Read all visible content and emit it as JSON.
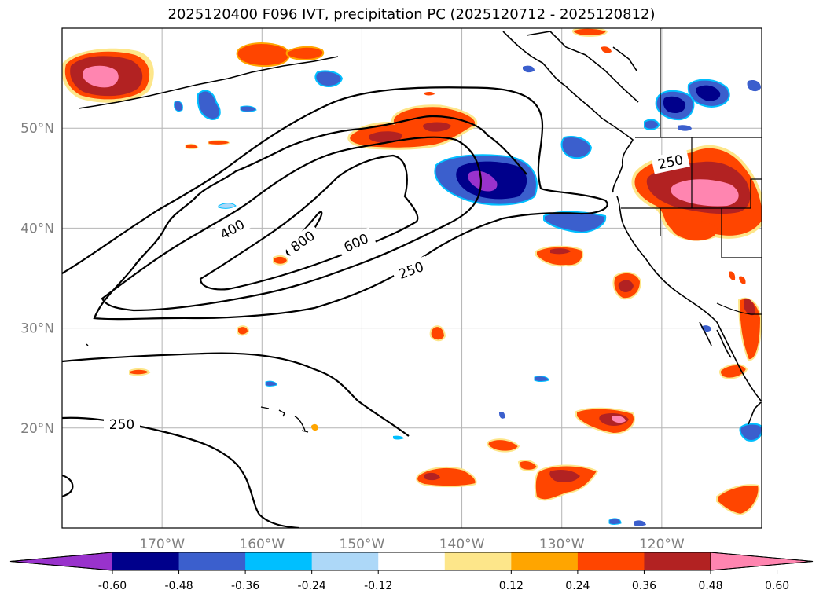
{
  "title": "2025120400 F096 IVT, precipitation PC (2025120712 - 2025120812)",
  "axes": {
    "lon_labels": [
      "170°W",
      "160°W",
      "150°W",
      "140°W",
      "130°W",
      "120°W"
    ],
    "lat_labels": [
      "50°N",
      "40°N",
      "30°N",
      "20°N"
    ],
    "lon_values": [
      -170,
      -160,
      -150,
      -140,
      -130,
      -120
    ],
    "lat_values": [
      50,
      40,
      30,
      20
    ]
  },
  "ivt_contours": {
    "levels": [
      250,
      400,
      600,
      800
    ],
    "labels": [
      "250",
      "250",
      "250",
      "400",
      "600",
      "800"
    ]
  },
  "colorbar": {
    "ticks": [
      "-0.60",
      "-0.48",
      "-0.36",
      "-0.24",
      "-0.12",
      "0.12",
      "0.24",
      "0.36",
      "0.48",
      "0.60"
    ],
    "colors": [
      "#9932cc",
      "#00008b",
      "#3b5fcd",
      "#00bfff",
      "#add8f8",
      "#ffffff",
      "#fde68a",
      "#ffa500",
      "#ff4500",
      "#b22222",
      "#ff85b0"
    ]
  },
  "colors": {
    "pink": "#ff85b0",
    "darkred": "#b22222",
    "orangered": "#ff4500",
    "orange": "#ffa500",
    "lightyellow": "#fde68a",
    "purple": "#9932cc",
    "navy": "#00008b",
    "royal": "#3b5fcd",
    "sky": "#00bfff",
    "lightblue": "#add8f8"
  }
}
